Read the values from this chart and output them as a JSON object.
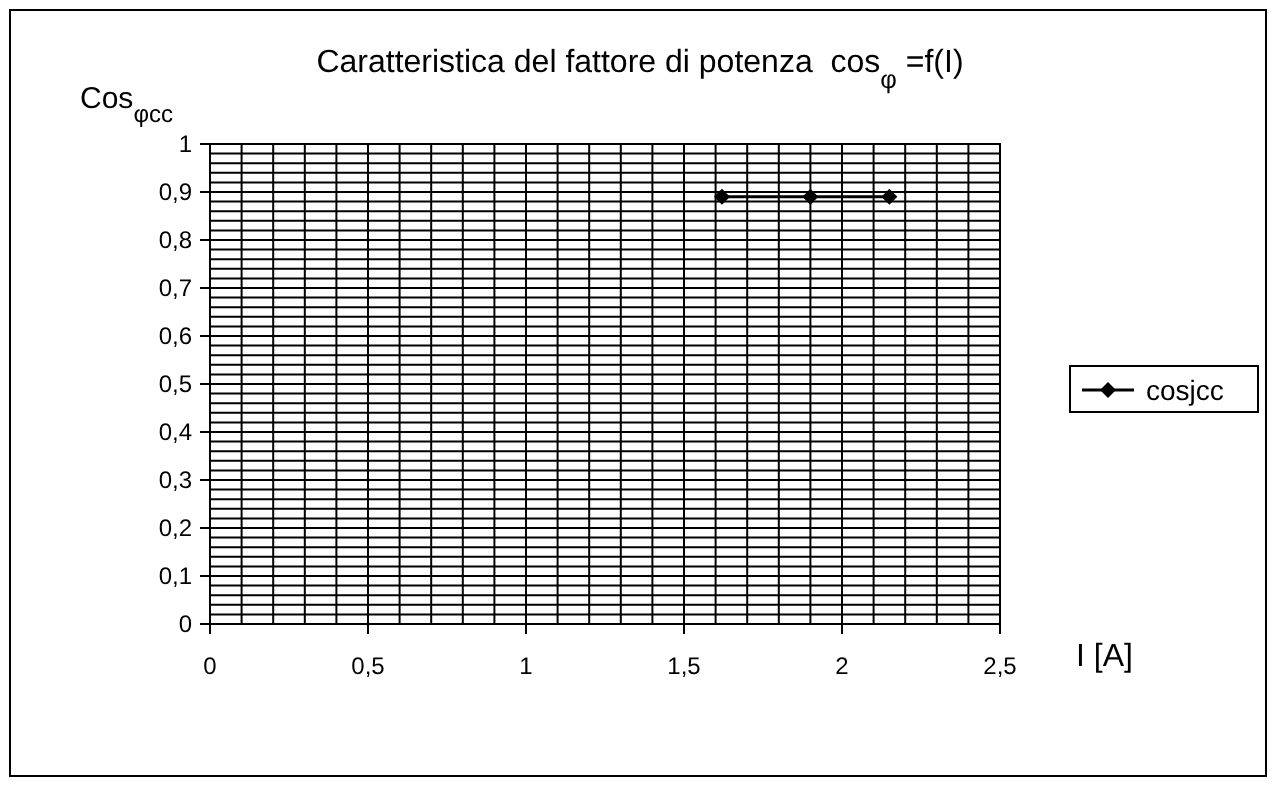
{
  "chart_data": {
    "type": "line",
    "title": "Caratteristica del fattore di potenza  cos$_{φ}$ =f(I)",
    "ylabel": "Cos$_{φcc}$",
    "xlabel": "I [A]",
    "series": [
      {
        "name": "cosjcc",
        "color": "#000000",
        "x": [
          1.62,
          1.9,
          2.15
        ],
        "values": [
          0.89,
          0.89,
          0.89
        ]
      }
    ],
    "xlim": [
      0,
      2.5
    ],
    "xticks": [
      {
        "value": 0,
        "label": "0"
      },
      {
        "value": 0.5,
        "label": "0,5"
      },
      {
        "value": 1,
        "label": "1"
      },
      {
        "value": 1.5,
        "label": "1,5"
      },
      {
        "value": 2,
        "label": "2"
      },
      {
        "value": 2.5,
        "label": "2,5"
      }
    ],
    "ylim": [
      0,
      1
    ],
    "yticks": [
      {
        "value": 0,
        "label": "0"
      },
      {
        "value": 0.1,
        "label": "0,1"
      },
      {
        "value": 0.2,
        "label": "0,2"
      },
      {
        "value": 0.3,
        "label": "0,3"
      },
      {
        "value": 0.4,
        "label": "0,4"
      },
      {
        "value": 0.5,
        "label": "0,5"
      },
      {
        "value": 0.6,
        "label": "0,6"
      },
      {
        "value": 0.7,
        "label": "0,7"
      },
      {
        "value": 0.8,
        "label": "0,8"
      },
      {
        "value": 0.9,
        "label": "0,9"
      },
      {
        "value": 1,
        "label": "1"
      }
    ],
    "grid": true,
    "legend": "right",
    "marker": "diamond",
    "line_style": "solid"
  }
}
